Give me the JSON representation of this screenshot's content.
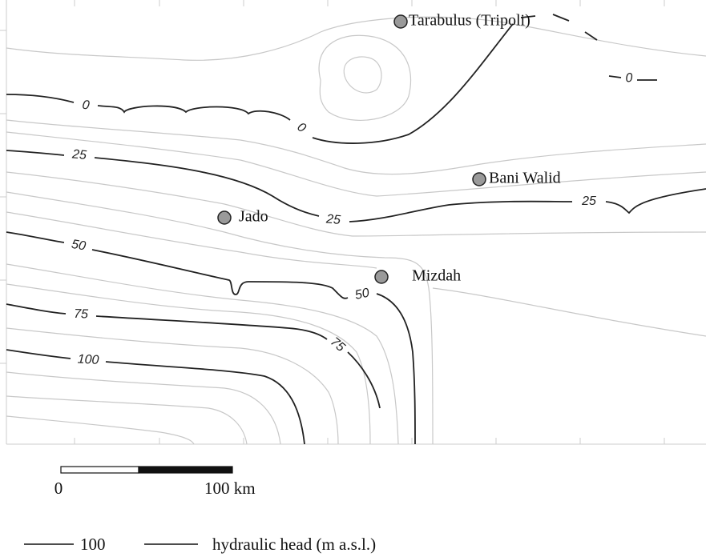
{
  "places": [
    {
      "name": "Tarabulus (Tripoli)"
    },
    {
      "name": "Bani Walid"
    },
    {
      "name": "Jado"
    },
    {
      "name": "Mizdah"
    }
  ],
  "contours": [
    {
      "level": 0
    },
    {
      "level": 25
    },
    {
      "level": 50
    },
    {
      "level": 75
    },
    {
      "level": 100
    }
  ],
  "scale": {
    "labels": [
      "0",
      "100 km"
    ]
  },
  "legend": {
    "level": 100,
    "label": "hydraulic head (m a.s.l.)"
  }
}
